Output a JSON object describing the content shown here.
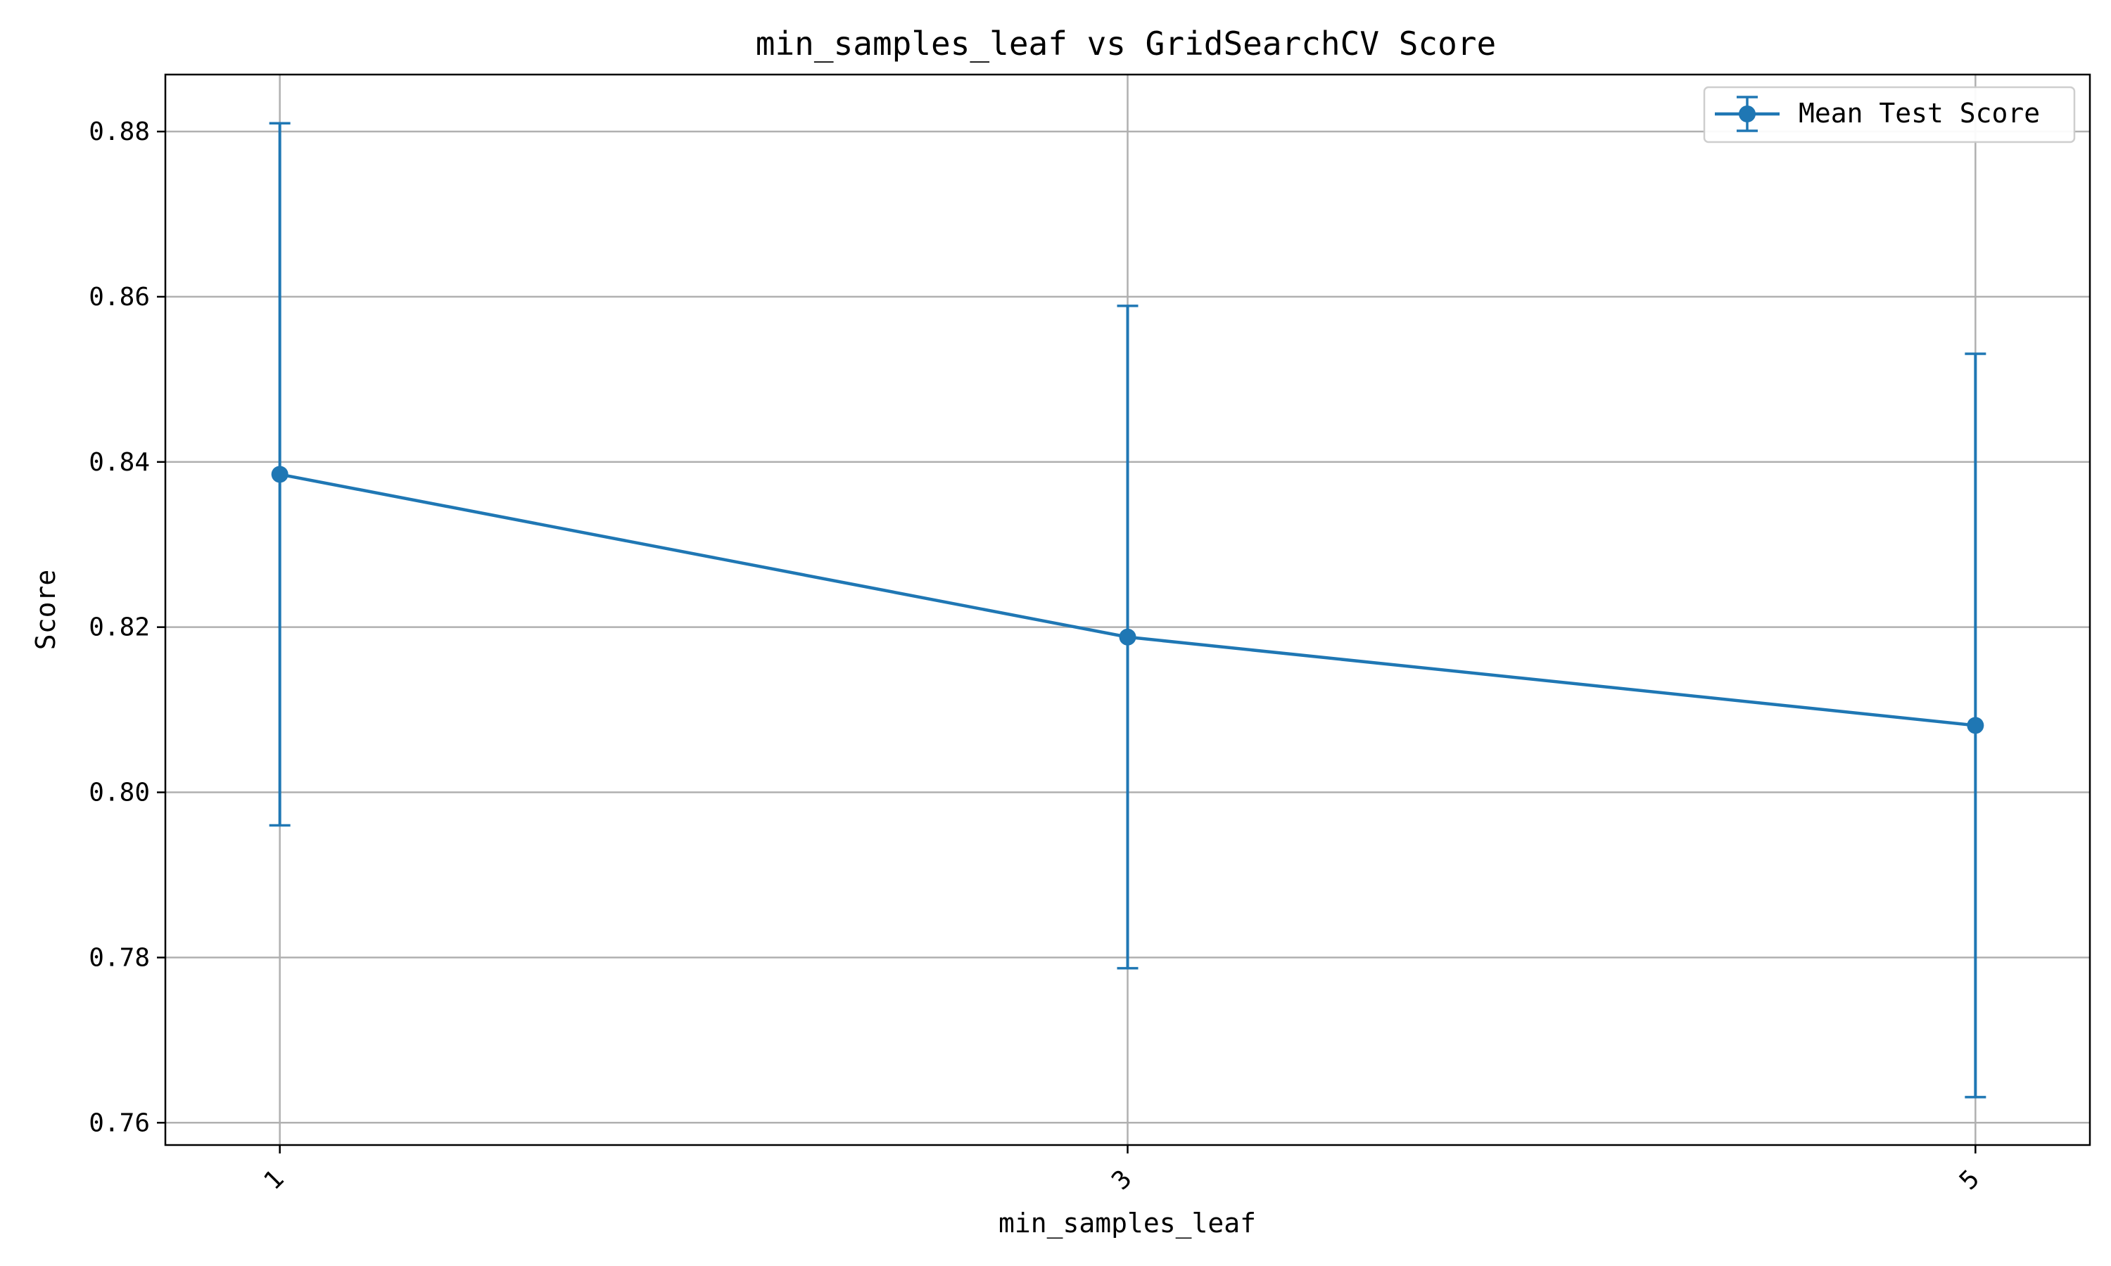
{
  "chart_data": {
    "type": "line",
    "title": "min_samples_leaf vs GridSearchCV Score",
    "xlabel": "min_samples_leaf",
    "ylabel": "Score",
    "x": [
      1,
      3,
      5
    ],
    "x_tick_labels": [
      "1",
      "3",
      "5"
    ],
    "y_ticks": [
      0.76,
      0.78,
      0.8,
      0.82,
      0.84,
      0.86,
      0.88
    ],
    "y_tick_labels": [
      "0.76",
      "0.78",
      "0.80",
      "0.82",
      "0.84",
      "0.86",
      "0.88"
    ],
    "ylim": [
      0.7573,
      0.8869
    ],
    "xlim": [
      0.73,
      5.27
    ],
    "grid": true,
    "legend_position": "top-right",
    "series": [
      {
        "name": "Mean Test Score",
        "values": [
          0.8385,
          0.8188,
          0.8081
        ],
        "error": [
          0.0425,
          0.0401,
          0.045
        ],
        "color": "#1f77b4"
      }
    ]
  }
}
